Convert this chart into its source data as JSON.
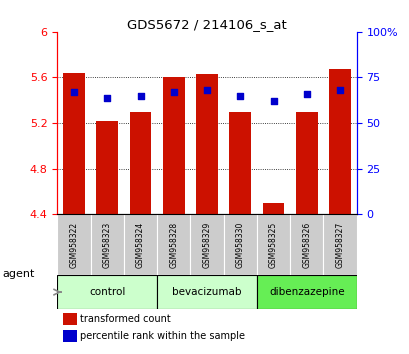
{
  "title": "GDS5672 / 214106_s_at",
  "samples": [
    "GSM958322",
    "GSM958323",
    "GSM958324",
    "GSM958328",
    "GSM958329",
    "GSM958330",
    "GSM958325",
    "GSM958326",
    "GSM958327"
  ],
  "red_values": [
    5.635,
    5.22,
    5.3,
    5.6,
    5.63,
    5.295,
    4.5,
    5.3,
    5.67
  ],
  "blue_values": [
    67,
    64,
    65,
    67,
    68,
    65,
    62,
    66,
    68
  ],
  "y_min": 4.4,
  "y_max": 6.0,
  "y_ticks": [
    4.4,
    4.8,
    5.2,
    5.6,
    6.0
  ],
  "y_tick_labels": [
    "4.4",
    "4.8",
    "5.2",
    "5.6",
    "6"
  ],
  "y2_ticks": [
    0,
    25,
    50,
    75,
    100
  ],
  "y2_labels": [
    "0",
    "25",
    "50",
    "75",
    "100%"
  ],
  "groups": [
    {
      "label": "control",
      "indices": [
        0,
        1,
        2
      ],
      "color": "#ccffcc"
    },
    {
      "label": "bevacizumab",
      "indices": [
        3,
        4,
        5
      ],
      "color": "#ccffcc"
    },
    {
      "label": "dibenzazepine",
      "indices": [
        6,
        7,
        8
      ],
      "color": "#66ee55"
    }
  ],
  "bar_color": "#cc1100",
  "dot_color": "#0000cc",
  "bar_width": 0.65,
  "bg_color": "#ffffff",
  "sample_box_color": "#cccccc",
  "agent_label": "agent",
  "legend_red": "transformed count",
  "legend_blue": "percentile rank within the sample"
}
